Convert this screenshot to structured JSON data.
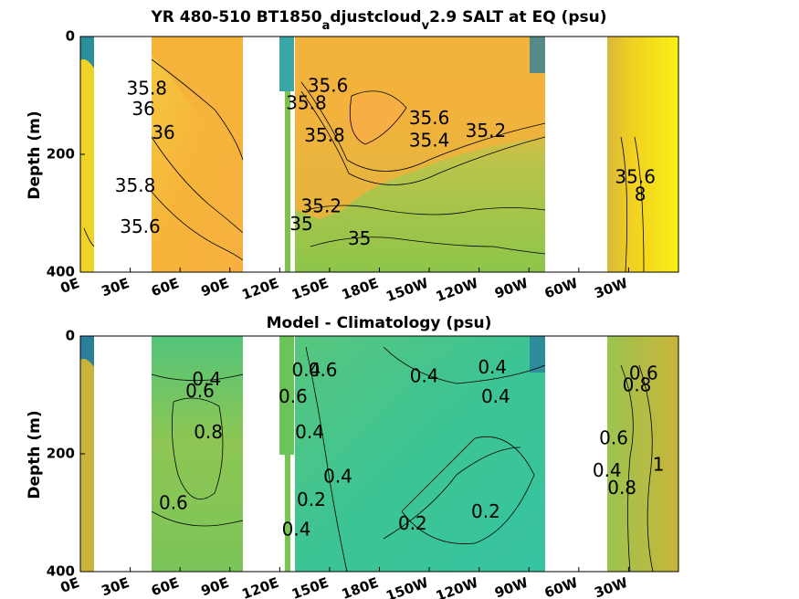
{
  "panels": [
    {
      "title_main": "YR 480-510 BT1850",
      "title_sub1": "a",
      "title_mid": "djustcloud",
      "title_sub2": "v",
      "title_end": "2.9 SALT at EQ (psu)",
      "ylabel": "Depth (m)",
      "yticks": [
        "0",
        "200",
        "400"
      ],
      "xticks": [
        "0E",
        "30E",
        "60E",
        "90E",
        "120E",
        "150E",
        "180E",
        "150W",
        "120W",
        "90W",
        "60W",
        "30W"
      ]
    },
    {
      "title": "Model - Climatology (psu)",
      "ylabel": "Depth (m)",
      "yticks": [
        "0",
        "200",
        "400"
      ],
      "xticks": [
        "0E",
        "30E",
        "60E",
        "90E",
        "120E",
        "150E",
        "180E",
        "150W",
        "120W",
        "90W",
        "60W",
        "30W"
      ]
    }
  ],
  "chart_data": [
    {
      "type": "heatmap",
      "title": "YR 480-510 BT1850_adjustcloud_v2.9 SALT at EQ (psu)",
      "ylabel": "Depth (m)",
      "ylim": [
        400,
        0
      ],
      "xlim": [
        "0E",
        "360E"
      ],
      "contour_labels": [
        {
          "text": "35.8",
          "lon": 40,
          "depth": 90
        },
        {
          "text": "36",
          "lon": 38,
          "depth": 125
        },
        {
          "text": "36",
          "lon": 50,
          "depth": 165
        },
        {
          "text": "35.8",
          "lon": 33,
          "depth": 255
        },
        {
          "text": "35.6",
          "lon": 36,
          "depth": 325
        },
        {
          "text": "35.6",
          "lon": 149,
          "depth": 85
        },
        {
          "text": "35.8",
          "lon": 136,
          "depth": 115
        },
        {
          "text": "35.8",
          "lon": 147,
          "depth": 170
        },
        {
          "text": "35.6",
          "lon": 210,
          "depth": 140
        },
        {
          "text": "35.4",
          "lon": 210,
          "depth": 178
        },
        {
          "text": "35.2",
          "lon": 244,
          "depth": 162
        },
        {
          "text": "35.2",
          "lon": 145,
          "depth": 290
        },
        {
          "text": "35",
          "lon": 133,
          "depth": 320
        },
        {
          "text": "35",
          "lon": 168,
          "depth": 345
        },
        {
          "text": "35.6",
          "lon": 334,
          "depth": 240
        },
        {
          "text": "8",
          "lon": 337,
          "depth": 270
        }
      ]
    },
    {
      "type": "heatmap",
      "title": "Model - Climatology (psu)",
      "ylabel": "Depth (m)",
      "ylim": [
        400,
        0
      ],
      "xlim": [
        "0E",
        "360E"
      ],
      "contour_labels": [
        {
          "text": "0.4",
          "lon": 76,
          "depth": 75
        },
        {
          "text": "0.6",
          "lon": 72,
          "depth": 95
        },
        {
          "text": "0.8",
          "lon": 77,
          "depth": 165
        },
        {
          "text": "0.6",
          "lon": 56,
          "depth": 285
        },
        {
          "text": "0.4",
          "lon": 136,
          "depth": 60
        },
        {
          "text": "0.6",
          "lon": 146,
          "depth": 60
        },
        {
          "text": "0.6",
          "lon": 128,
          "depth": 105
        },
        {
          "text": "0.4",
          "lon": 138,
          "depth": 165
        },
        {
          "text": "0.4",
          "lon": 155,
          "depth": 240
        },
        {
          "text": "0.2",
          "lon": 139,
          "depth": 280
        },
        {
          "text": "0.4",
          "lon": 130,
          "depth": 330
        },
        {
          "text": "0.4",
          "lon": 207,
          "depth": 70
        },
        {
          "text": "0.4",
          "lon": 248,
          "depth": 55
        },
        {
          "text": "0.4",
          "lon": 250,
          "depth": 105
        },
        {
          "text": "0.2",
          "lon": 200,
          "depth": 320
        },
        {
          "text": "0.2",
          "lon": 244,
          "depth": 300
        },
        {
          "text": "0.6",
          "lon": 339,
          "depth": 65
        },
        {
          "text": "0.8",
          "lon": 335,
          "depth": 85
        },
        {
          "text": "0.6",
          "lon": 321,
          "depth": 175
        },
        {
          "text": "0.4",
          "lon": 317,
          "depth": 230
        },
        {
          "text": "0.8",
          "lon": 326,
          "depth": 260
        },
        {
          "text": "1",
          "lon": 348,
          "depth": 220
        }
      ]
    }
  ]
}
